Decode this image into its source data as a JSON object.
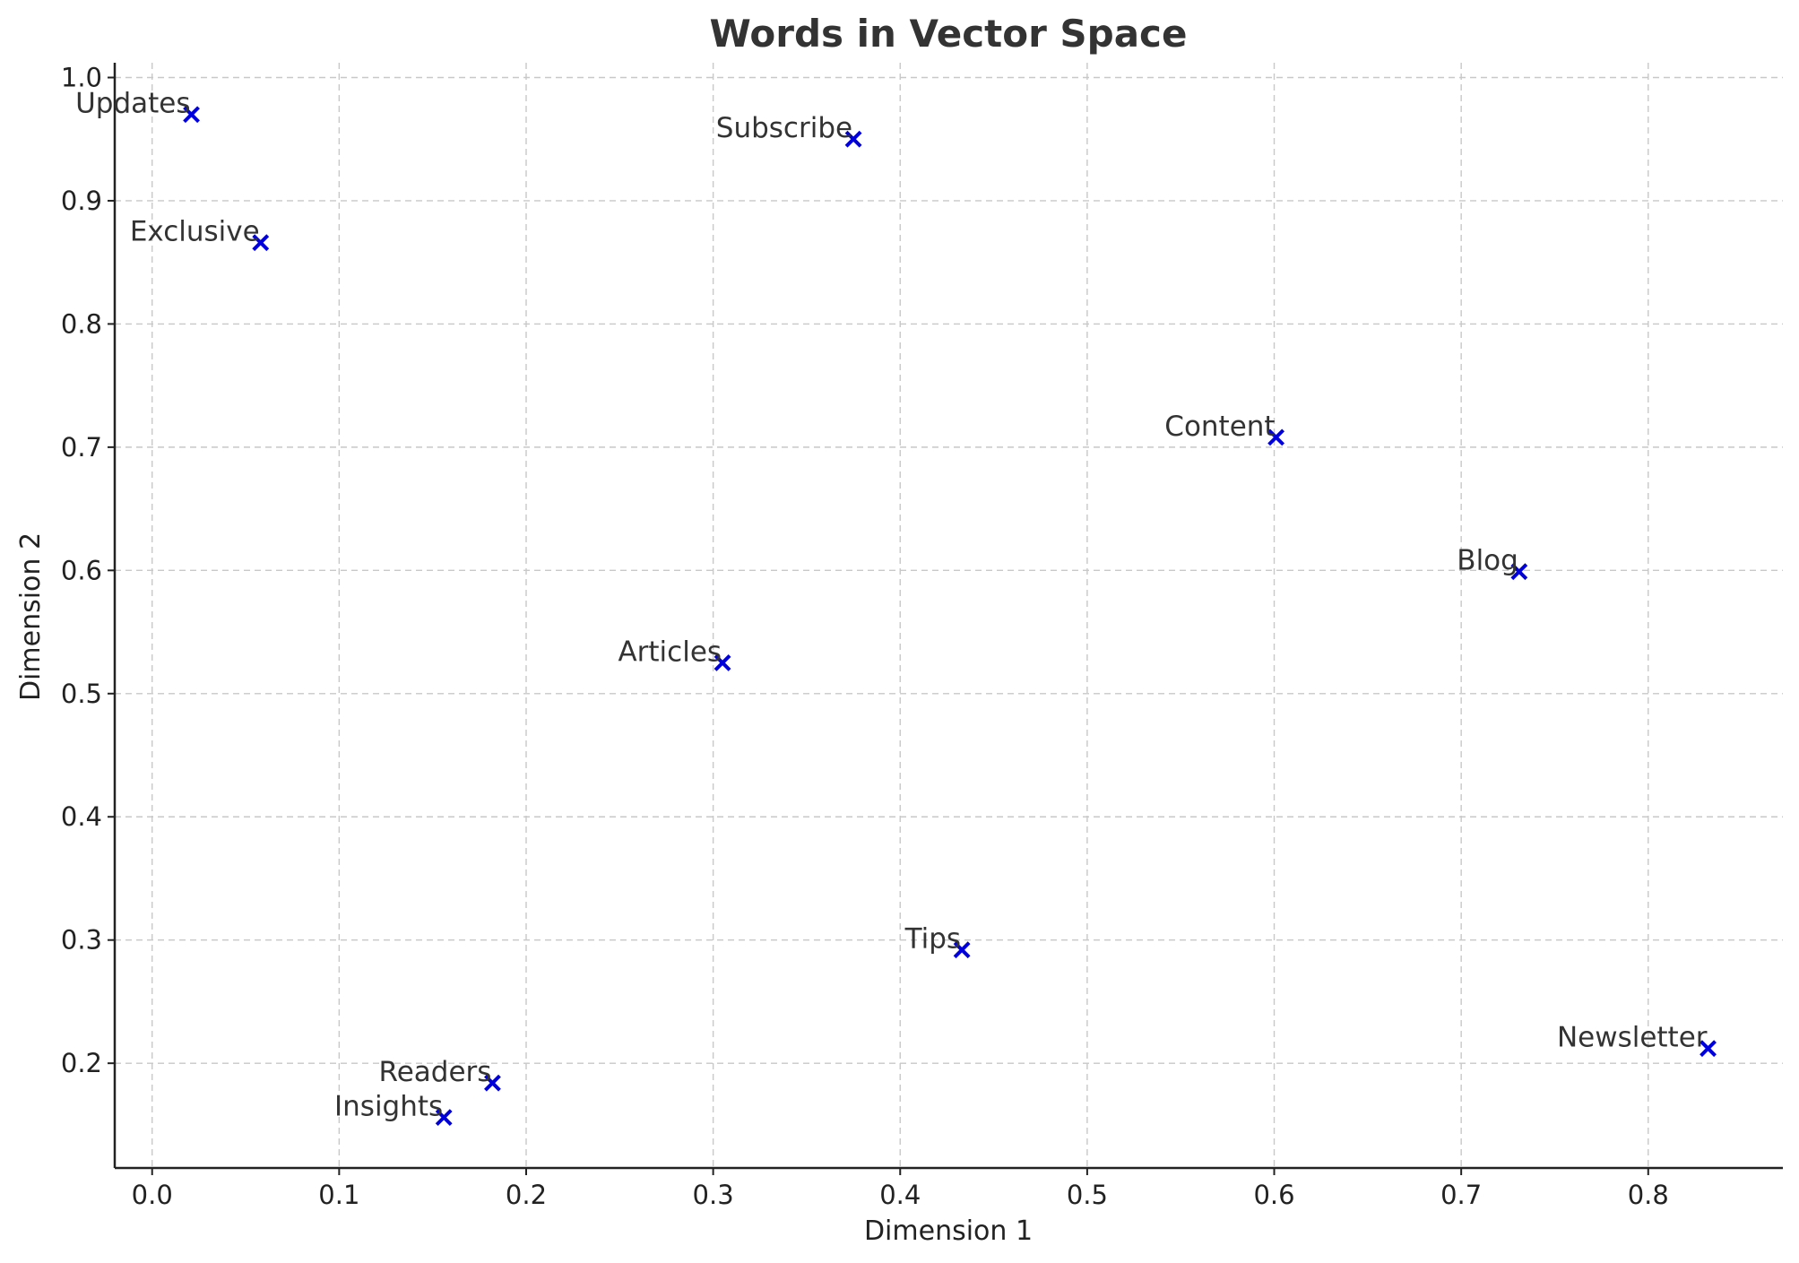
{
  "chart_data": {
    "type": "scatter",
    "title": "Words in Vector Space",
    "xlabel": "Dimension 1",
    "ylabel": "Dimension 2",
    "xlim": [
      -0.02,
      0.872
    ],
    "ylim": [
      0.115,
      1.012
    ],
    "xticks": [
      0.0,
      0.1,
      0.2,
      0.3,
      0.4,
      0.5,
      0.6,
      0.7,
      0.8
    ],
    "xtick_labels": [
      "0.0",
      "0.1",
      "0.2",
      "0.3",
      "0.4",
      "0.5",
      "0.6",
      "0.7",
      "0.8"
    ],
    "yticks": [
      0.2,
      0.3,
      0.4,
      0.5,
      0.6,
      0.7,
      0.8,
      0.9,
      1.0
    ],
    "ytick_labels": [
      "0.2",
      "0.3",
      "0.4",
      "0.5",
      "0.6",
      "0.7",
      "0.8",
      "0.9",
      "1.0"
    ],
    "grid": true,
    "marker": "x",
    "marker_color": "#0000dd",
    "points": [
      {
        "label": "Updates",
        "x": 0.021,
        "y": 0.97
      },
      {
        "label": "Subscribe",
        "x": 0.375,
        "y": 0.95
      },
      {
        "label": "Exclusive",
        "x": 0.058,
        "y": 0.866
      },
      {
        "label": "Content",
        "x": 0.601,
        "y": 0.708
      },
      {
        "label": "Blog",
        "x": 0.731,
        "y": 0.599
      },
      {
        "label": "Articles",
        "x": 0.305,
        "y": 0.525
      },
      {
        "label": "Tips",
        "x": 0.433,
        "y": 0.292
      },
      {
        "label": "Newsletter",
        "x": 0.832,
        "y": 0.212
      },
      {
        "label": "Readers",
        "x": 0.182,
        "y": 0.184
      },
      {
        "label": "Insights",
        "x": 0.156,
        "y": 0.156
      }
    ]
  }
}
